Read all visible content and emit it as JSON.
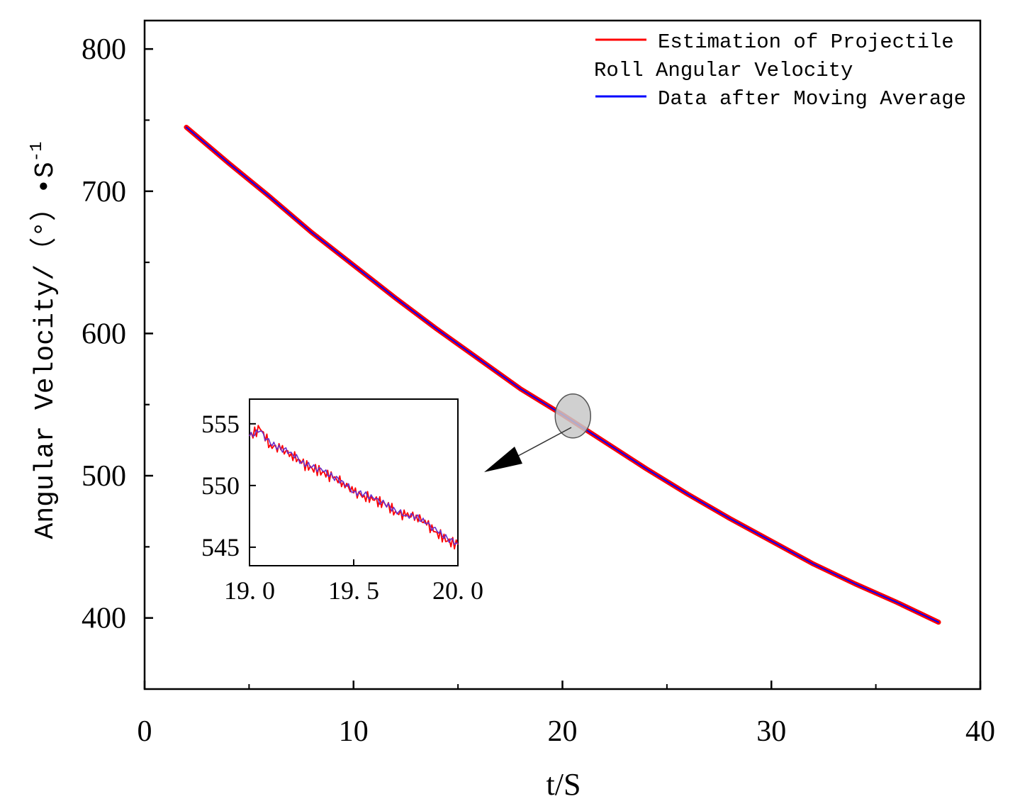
{
  "chart_data": {
    "type": "line",
    "xlabel": "t/S",
    "ylabel": "Angular Velocity/（°）•S",
    "ylabel_superscript": "-1",
    "xlim": [
      0,
      40
    ],
    "ylim": [
      350,
      820
    ],
    "x_ticks": [
      0,
      10,
      20,
      30,
      40
    ],
    "x_tick_labels": [
      "0",
      "10",
      "20",
      "30",
      "40"
    ],
    "y_ticks": [
      400,
      500,
      600,
      700,
      800
    ],
    "y_tick_labels": [
      "400",
      "500",
      "600",
      "700",
      "800"
    ],
    "legend": {
      "position": "top-right",
      "entries": [
        {
          "name": "Estimation of Projectile",
          "color": "#ff0000"
        },
        {
          "name": "Roll Angular Velocity",
          "color": ""
        },
        {
          "name": "Data after Moving Average",
          "color": "#0000ff"
        }
      ]
    },
    "series": [
      {
        "name": "Estimation of Projectile Roll Angular Velocity",
        "color": "#ff0000",
        "x": [
          2,
          4,
          6,
          8,
          10,
          12,
          14,
          16,
          18,
          20,
          22,
          24,
          26,
          28,
          30,
          32,
          34,
          36,
          38
        ],
        "values": [
          745,
          720,
          696,
          671,
          648,
          625,
          603,
          582,
          561,
          543,
          524,
          505,
          487,
          470,
          454,
          438,
          424,
          411,
          397
        ]
      },
      {
        "name": "Data after Moving Average",
        "color": "#0000ff",
        "x": [
          2,
          4,
          6,
          8,
          10,
          12,
          14,
          16,
          18,
          20,
          22,
          24,
          26,
          28,
          30,
          32,
          34,
          36,
          38
        ],
        "values": [
          745,
          720,
          696,
          671,
          648,
          625,
          603,
          582,
          561,
          543,
          524,
          505,
          487,
          470,
          454,
          438,
          424,
          411,
          397
        ]
      }
    ],
    "highlight": {
      "x": 20.5,
      "y": 542,
      "note": "zoom region shown in inset"
    },
    "inset": {
      "type": "line",
      "xlim": [
        19.0,
        20.0
      ],
      "ylim": [
        543.5,
        557
      ],
      "x_ticks": [
        19.0,
        19.5,
        20.0
      ],
      "x_tick_labels": [
        "19. 0",
        "19. 5",
        "20. 0"
      ],
      "y_ticks": [
        545,
        550,
        555
      ],
      "y_tick_labels": [
        "545",
        "550",
        "555"
      ],
      "series": [
        {
          "name": "Estimation of Projectile Roll Angular Velocity",
          "color": "#ff0000",
          "x": [
            19.0,
            19.05,
            19.1,
            19.15,
            19.2,
            19.25,
            19.3,
            19.35,
            19.4,
            19.45,
            19.5,
            19.55,
            19.6,
            19.65,
            19.7,
            19.75,
            19.8,
            19.85,
            19.9,
            19.95,
            20.0
          ],
          "values": [
            554.0,
            554.6,
            553.3,
            552.9,
            552.6,
            551.8,
            551.4,
            551.1,
            550.6,
            550.3,
            549.4,
            549.2,
            548.8,
            548.5,
            547.9,
            547.5,
            547.6,
            546.8,
            546.2,
            545.5,
            545.2
          ]
        },
        {
          "name": "Data after Moving Average",
          "color": "#6a2ec9",
          "x": [
            19.0,
            19.05,
            19.1,
            19.15,
            19.2,
            19.25,
            19.3,
            19.35,
            19.4,
            19.45,
            19.5,
            19.55,
            19.6,
            19.65,
            19.7,
            19.75,
            19.8,
            19.85,
            19.9,
            19.95,
            20.0
          ],
          "values": [
            554.0,
            554.4,
            553.4,
            553.0,
            552.7,
            551.9,
            551.5,
            551.2,
            550.7,
            550.3,
            549.5,
            549.3,
            548.9,
            548.5,
            548.0,
            547.6,
            547.5,
            546.9,
            546.3,
            545.7,
            545.3
          ]
        }
      ]
    }
  }
}
